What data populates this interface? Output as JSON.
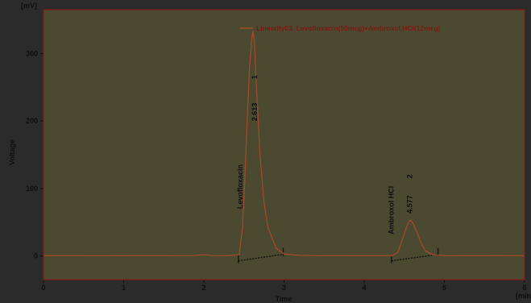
{
  "chart_data": {
    "type": "line",
    "title": "",
    "xlabel": "Time",
    "ylabel": "Voltage",
    "x_unit": "[min]",
    "y_unit": "[mV]",
    "xlim": [
      0,
      6
    ],
    "ylim": [
      -35,
      365
    ],
    "x_ticks": [
      0,
      1,
      2,
      3,
      4,
      5,
      6
    ],
    "y_ticks": [
      0,
      100,
      200,
      300
    ],
    "grid": false,
    "legend_position": "top-right",
    "series": [
      {
        "name": "Linearity03_Levofloxacin(50mcg)+Ambroxol HCl(12mcg)",
        "color": "#a24a2a",
        "x": [
          0.0,
          0.5,
          1.0,
          1.5,
          1.9,
          2.0,
          2.1,
          2.3,
          2.44,
          2.48,
          2.51,
          2.54,
          2.57,
          2.6,
          2.613,
          2.63,
          2.66,
          2.7,
          2.75,
          2.8,
          2.9,
          3.0,
          3.2,
          3.5,
          4.0,
          4.35,
          4.42,
          4.47,
          4.52,
          4.557,
          4.577,
          4.6,
          4.65,
          4.7,
          4.76,
          4.85,
          5.0,
          5.5,
          6.0
        ],
        "y": [
          0.5,
          0.6,
          0.5,
          0.6,
          0.8,
          2.0,
          0.8,
          0.6,
          2,
          40,
          110,
          200,
          280,
          325,
          333,
          318,
          240,
          150,
          80,
          42,
          12,
          3,
          1,
          0.6,
          0.5,
          0.5,
          6,
          22,
          40,
          51,
          53,
          50,
          38,
          22,
          8,
          2,
          0.6,
          0.5,
          0.4
        ]
      }
    ],
    "peaks": [
      {
        "number": "1",
        "time_label": "2.613",
        "name": "Levofloxacin",
        "rt": 2.613,
        "height": 333,
        "baseline": [
          2.43,
          2.99
        ]
      },
      {
        "number": "2",
        "time_label": "4.577",
        "name": "Ambroxol HCl",
        "rt": 4.577,
        "height": 53,
        "baseline": [
          4.34,
          4.92
        ]
      }
    ]
  },
  "colors": {
    "background": "#2b2b2b",
    "plot": "#4b4a30",
    "axis_frame": "#7a1f1f",
    "text": "#0f0f0f"
  }
}
